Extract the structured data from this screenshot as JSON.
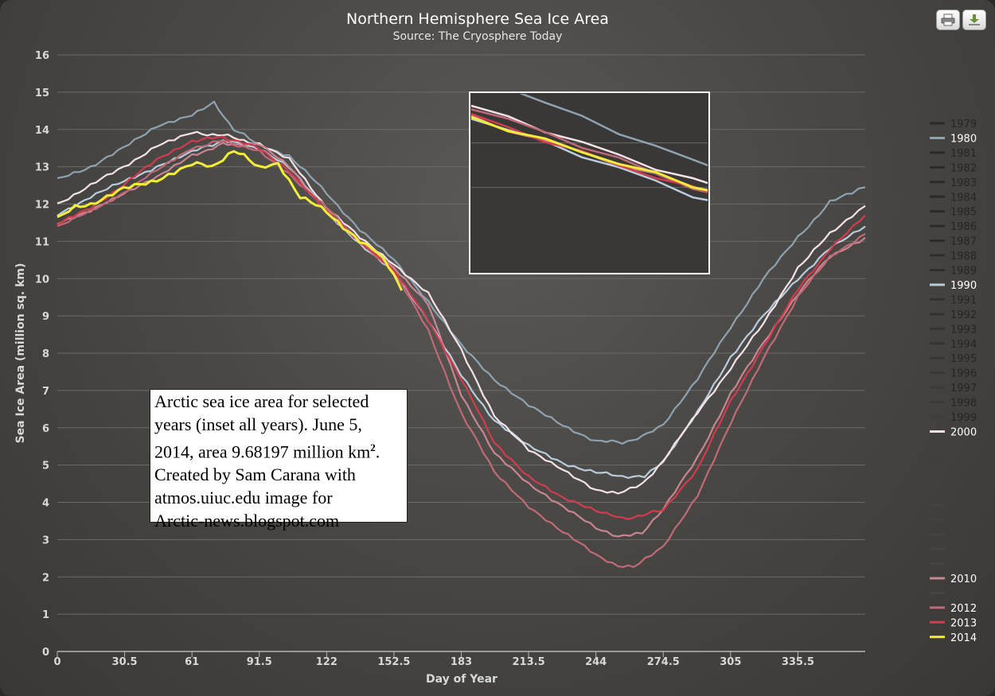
{
  "chart_data": {
    "type": "line",
    "title": "Northern Hemisphere Sea Ice Area",
    "subtitle": "Source: The Cryosphere Today",
    "xlabel": "Day of Year",
    "ylabel": "Sea Ice Area (million sq. km)",
    "xlim": [
      0,
      366
    ],
    "ylim": [
      0,
      16
    ],
    "xticks": [
      "0",
      "30.5",
      "61",
      "91.5",
      "122",
      "152.5",
      "183",
      "213.5",
      "244",
      "274.5",
      "305",
      "335.5"
    ],
    "yticks": [
      "0",
      "1",
      "2",
      "3",
      "4",
      "5",
      "6",
      "7",
      "8",
      "9",
      "10",
      "11",
      "12",
      "13",
      "14",
      "15",
      "16"
    ],
    "grid": true,
    "legend_position": "right",
    "series": [
      {
        "name": "1980",
        "color": "#8ea2b0",
        "points": [
          [
            0,
            12.65
          ],
          [
            15,
            13.0
          ],
          [
            30,
            13.5
          ],
          [
            45,
            14.1
          ],
          [
            61,
            14.4
          ],
          [
            71,
            14.7
          ],
          [
            80,
            14.0
          ],
          [
            91.5,
            13.6
          ],
          [
            105,
            13.3
          ],
          [
            122,
            12.3
          ],
          [
            137,
            11.3
          ],
          [
            152.5,
            10.5
          ],
          [
            168,
            9.4
          ],
          [
            183,
            8.2
          ],
          [
            198,
            7.3
          ],
          [
            213.5,
            6.6
          ],
          [
            229,
            6.05
          ],
          [
            244,
            5.65
          ],
          [
            256,
            5.6
          ],
          [
            265,
            5.75
          ],
          [
            274.5,
            6.1
          ],
          [
            290,
            7.3
          ],
          [
            305,
            8.7
          ],
          [
            320,
            10.0
          ],
          [
            335.5,
            11.1
          ],
          [
            350,
            12.05
          ],
          [
            360,
            12.3
          ],
          [
            366,
            12.45
          ]
        ]
      },
      {
        "name": "1990",
        "color": "#b8ccdc",
        "points": [
          [
            0,
            11.7
          ],
          [
            15,
            12.2
          ],
          [
            30,
            12.6
          ],
          [
            45,
            13.0
          ],
          [
            61,
            13.4
          ],
          [
            75,
            13.7
          ],
          [
            91.5,
            13.5
          ],
          [
            105,
            13.0
          ],
          [
            122,
            11.8
          ],
          [
            137,
            10.9
          ],
          [
            152.5,
            10.2
          ],
          [
            168,
            8.9
          ],
          [
            183,
            7.4
          ],
          [
            198,
            6.2
          ],
          [
            213.5,
            5.5
          ],
          [
            229,
            5.05
          ],
          [
            244,
            4.8
          ],
          [
            256,
            4.7
          ],
          [
            266,
            4.7
          ],
          [
            274.5,
            5.1
          ],
          [
            290,
            6.4
          ],
          [
            305,
            7.9
          ],
          [
            320,
            9.0
          ],
          [
            335.5,
            10.0
          ],
          [
            350,
            10.8
          ],
          [
            366,
            11.4
          ]
        ]
      },
      {
        "name": "2000",
        "color": "#f4e2e6",
        "points": [
          [
            0,
            12.0
          ],
          [
            15,
            12.5
          ],
          [
            30,
            13.0
          ],
          [
            45,
            13.55
          ],
          [
            61,
            13.9
          ],
          [
            75,
            13.85
          ],
          [
            91.5,
            13.6
          ],
          [
            105,
            13.2
          ],
          [
            122,
            11.9
          ],
          [
            137,
            11.1
          ],
          [
            152.5,
            10.4
          ],
          [
            168,
            9.6
          ],
          [
            183,
            8.1
          ],
          [
            198,
            6.3
          ],
          [
            213.5,
            5.4
          ],
          [
            229,
            4.9
          ],
          [
            244,
            4.3
          ],
          [
            254,
            4.25
          ],
          [
            265,
            4.5
          ],
          [
            274.5,
            5.1
          ],
          [
            290,
            6.4
          ],
          [
            305,
            7.6
          ],
          [
            320,
            8.8
          ],
          [
            335.5,
            10.3
          ],
          [
            350,
            11.2
          ],
          [
            360,
            11.7
          ],
          [
            366,
            11.95
          ]
        ]
      },
      {
        "name": "2010",
        "color": "#c98591",
        "points": [
          [
            0,
            11.5
          ],
          [
            15,
            11.8
          ],
          [
            30,
            12.3
          ],
          [
            45,
            12.7
          ],
          [
            61,
            13.3
          ],
          [
            75,
            13.6
          ],
          [
            91.5,
            13.6
          ],
          [
            105,
            13.0
          ],
          [
            122,
            11.8
          ],
          [
            137,
            11.0
          ],
          [
            152.5,
            10.3
          ],
          [
            168,
            9.3
          ],
          [
            183,
            6.9
          ],
          [
            198,
            5.3
          ],
          [
            213.5,
            4.5
          ],
          [
            229,
            3.9
          ],
          [
            244,
            3.3
          ],
          [
            254,
            3.1
          ],
          [
            265,
            3.2
          ],
          [
            274.5,
            3.8
          ],
          [
            290,
            5.2
          ],
          [
            305,
            6.9
          ],
          [
            320,
            8.3
          ],
          [
            335.5,
            9.6
          ],
          [
            350,
            10.6
          ],
          [
            366,
            11.1
          ]
        ]
      },
      {
        "name": "2012",
        "color": "#c06a77",
        "points": [
          [
            0,
            11.4
          ],
          [
            15,
            11.8
          ],
          [
            30,
            12.3
          ],
          [
            45,
            12.9
          ],
          [
            61,
            13.5
          ],
          [
            75,
            13.7
          ],
          [
            91.5,
            13.4
          ],
          [
            105,
            12.8
          ],
          [
            122,
            11.9
          ],
          [
            137,
            11.0
          ],
          [
            152.5,
            10.2
          ],
          [
            168,
            8.6
          ],
          [
            183,
            6.4
          ],
          [
            198,
            4.8
          ],
          [
            213.5,
            3.9
          ],
          [
            229,
            3.2
          ],
          [
            244,
            2.6
          ],
          [
            254,
            2.3
          ],
          [
            261,
            2.25
          ],
          [
            274.5,
            2.8
          ],
          [
            290,
            4.2
          ],
          [
            305,
            6.1
          ],
          [
            320,
            7.9
          ],
          [
            335.5,
            9.5
          ],
          [
            350,
            10.6
          ],
          [
            366,
            11.2
          ]
        ]
      },
      {
        "name": "2013",
        "color": "#d23c4f",
        "points": [
          [
            0,
            11.45
          ],
          [
            15,
            11.9
          ],
          [
            30,
            12.5
          ],
          [
            45,
            13.2
          ],
          [
            61,
            13.7
          ],
          [
            75,
            13.8
          ],
          [
            91.5,
            13.5
          ],
          [
            105,
            12.9
          ],
          [
            122,
            11.8
          ],
          [
            137,
            11.0
          ],
          [
            152.5,
            10.2
          ],
          [
            168,
            8.9
          ],
          [
            183,
            7.3
          ],
          [
            198,
            5.6
          ],
          [
            213.5,
            4.7
          ],
          [
            229,
            4.1
          ],
          [
            244,
            3.8
          ],
          [
            256,
            3.55
          ],
          [
            265,
            3.65
          ],
          [
            274.5,
            3.8
          ],
          [
            290,
            4.9
          ],
          [
            305,
            6.7
          ],
          [
            320,
            8.2
          ],
          [
            335.5,
            9.7
          ],
          [
            350,
            10.8
          ],
          [
            366,
            11.7
          ]
        ]
      },
      {
        "name": "2014",
        "color": "#f2ec3a",
        "points": [
          [
            0,
            11.6
          ],
          [
            8,
            11.9
          ],
          [
            15,
            12.0
          ],
          [
            30,
            12.4
          ],
          [
            45,
            12.65
          ],
          [
            61,
            13.1
          ],
          [
            70,
            13.0
          ],
          [
            80,
            13.45
          ],
          [
            91.5,
            13.0
          ],
          [
            100,
            13.1
          ],
          [
            110,
            12.2
          ],
          [
            122,
            11.8
          ],
          [
            137,
            11.0
          ],
          [
            145,
            10.7
          ],
          [
            152.5,
            10.1
          ],
          [
            156,
            9.68
          ]
        ]
      }
    ],
    "legend": [
      {
        "label": "1979",
        "color": "#2b2a28",
        "text": true
      },
      {
        "label": "1980",
        "color": "#8ea2b0",
        "text": true
      },
      {
        "label": "1981",
        "color": "#2b2a28",
        "text": true
      },
      {
        "label": "1982",
        "color": "#2b2a28",
        "text": true
      },
      {
        "label": "1983",
        "color": "#2b2a28",
        "text": true
      },
      {
        "label": "1984",
        "color": "#2b2a28",
        "text": true
      },
      {
        "label": "1985",
        "color": "#2b2a28",
        "text": true
      },
      {
        "label": "1986",
        "color": "#2b2a28",
        "text": true
      },
      {
        "label": "1987",
        "color": "#2b2a28",
        "text": true
      },
      {
        "label": "1988",
        "color": "#2d2c2a",
        "text": true
      },
      {
        "label": "1989",
        "color": "#2f2e2c",
        "text": true
      },
      {
        "label": "1990",
        "color": "#b8ccdc",
        "text": true
      },
      {
        "label": "1991",
        "color": "#323130",
        "text": true
      },
      {
        "label": "1992",
        "color": "#333231",
        "text": true
      },
      {
        "label": "1993",
        "color": "#353432",
        "text": true
      },
      {
        "label": "1994",
        "color": "#363533",
        "text": true
      },
      {
        "label": "1995",
        "color": "#383735",
        "text": true
      },
      {
        "label": "1996",
        "color": "#393836",
        "text": true
      },
      {
        "label": "1997",
        "color": "#3b3a38",
        "text": true
      },
      {
        "label": "1998",
        "color": "#3c3b39",
        "text": true
      },
      {
        "label": "1999",
        "color": "#3e3d3b",
        "text": true
      },
      {
        "label": "2000",
        "color": "#f4e2e6",
        "text": true
      },
      {
        "label": "",
        "color": "#403f3d",
        "text": false
      },
      {
        "label": "",
        "color": "#413f3d",
        "text": false
      },
      {
        "label": "",
        "color": "#42403e",
        "text": false
      },
      {
        "label": "",
        "color": "#43413f",
        "text": false
      },
      {
        "label": "",
        "color": "#444240",
        "text": false
      },
      {
        "label": "",
        "color": "#444240",
        "text": false
      },
      {
        "label": "",
        "color": "#454341",
        "text": false
      },
      {
        "label": "",
        "color": "#454341",
        "text": false
      },
      {
        "label": "",
        "color": "#464442",
        "text": false
      },
      {
        "label": "2010",
        "color": "#c98591",
        "text": true
      },
      {
        "label": "",
        "color": "#474543",
        "text": false
      },
      {
        "label": "2012",
        "color": "#c06a77",
        "text": true
      },
      {
        "label": "2013",
        "color": "#d23c4f",
        "text": true
      },
      {
        "label": "2014",
        "color": "#f2ec3a",
        "text": true
      }
    ]
  },
  "annotation": {
    "line1": "Arctic sea ice area for selected",
    "line2": "years (inset all years). June 5,",
    "line3_pre": "2014, area 9.68197 million km",
    "line3_sup": "2",
    "line3_post": ".",
    "line4": "Created by Sam Carana with",
    "line5": "atmos.uiuc.edu image for",
    "line6": "Arctic-news.blogspot.com"
  },
  "toolbar": {
    "print_icon": "printer-icon",
    "export_icon": "download-icon"
  }
}
